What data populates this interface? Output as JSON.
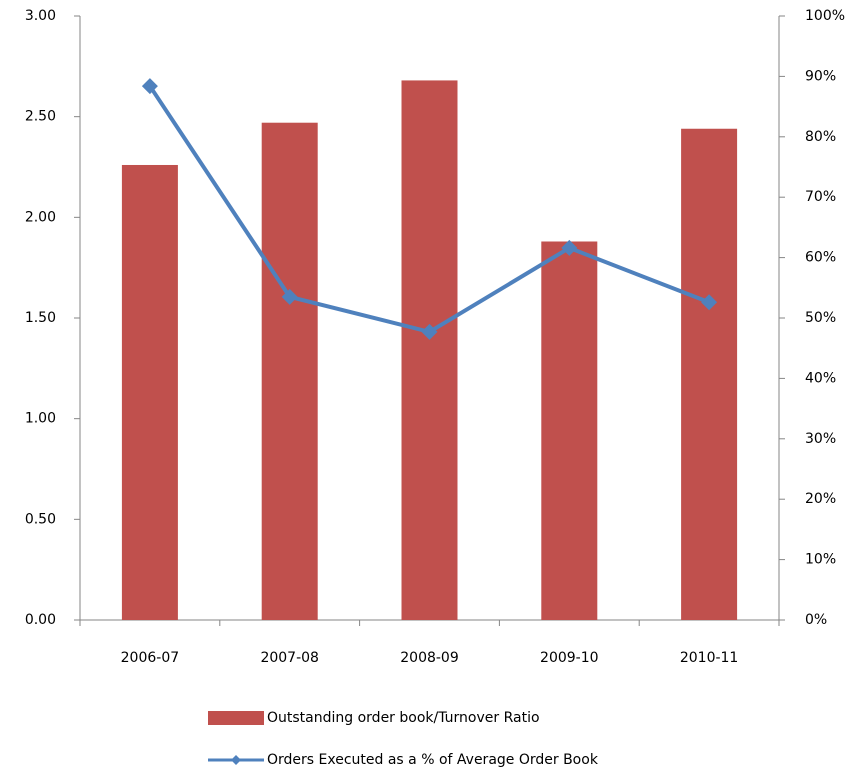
{
  "chart_data": {
    "type": "bar_line",
    "categories": [
      "2006-07",
      "2007-08",
      "2008-09",
      "2009-10",
      "2010-11"
    ],
    "series": [
      {
        "name": "Outstanding order book/Turnover Ratio",
        "color": "#c0504d",
        "type": "bar",
        "values": [
          2.26,
          2.47,
          2.68,
          1.88,
          2.44
        ]
      },
      {
        "name": "Orders Executed as a % of Average Order Book",
        "color": "#4f81bd",
        "type": "line",
        "axis": "y2",
        "values": [
          88.4,
          53.5,
          47.7,
          61.6,
          52.6
        ]
      }
    ],
    "ylim": [
      0,
      3
    ],
    "yticks": [
      {
        "value": 0,
        "label": "0.00"
      },
      {
        "value": 0.5,
        "label": "0.50"
      },
      {
        "value": 1,
        "label": "1.00"
      },
      {
        "value": 1.5,
        "label": "1.50"
      },
      {
        "value": 2,
        "label": "2.00"
      },
      {
        "value": 2.5,
        "label": "2.50"
      },
      {
        "value": 3,
        "label": "3.00"
      }
    ],
    "y2lim": [
      0,
      100
    ],
    "y2ticks": [
      {
        "value": 0,
        "label": "0%"
      },
      {
        "value": 10,
        "label": "10%"
      },
      {
        "value": 20,
        "label": "20%"
      },
      {
        "value": 30,
        "label": "30%"
      },
      {
        "value": 40,
        "label": "40%"
      },
      {
        "value": 50,
        "label": "50%"
      },
      {
        "value": 60,
        "label": "60%"
      },
      {
        "value": 70,
        "label": "70%"
      },
      {
        "value": 80,
        "label": "80%"
      },
      {
        "value": 90,
        "label": "90%"
      },
      {
        "value": 100,
        "label": "100%"
      }
    ],
    "grid": false,
    "legend": "bottom"
  }
}
